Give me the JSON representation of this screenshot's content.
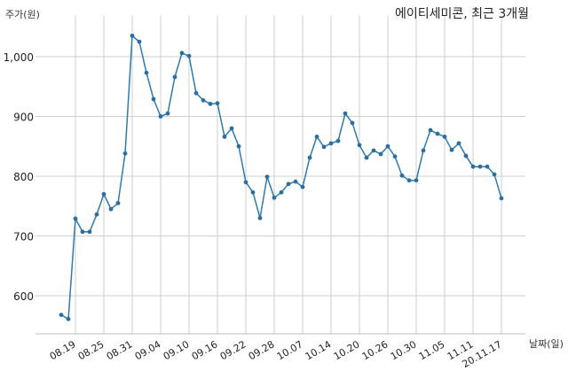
{
  "chart_data": {
    "type": "line",
    "title": "에이티세미콘, 최근 3개월",
    "xlabel": "날짜(일)",
    "ylabel": "주가(원)",
    "ylim": [
      540,
      1050
    ],
    "yticks": [
      600,
      700,
      800,
      900,
      1000
    ],
    "ytick_labels": [
      "600",
      "700",
      "800",
      "900",
      "1,000"
    ],
    "xtick_labels": [
      "08.19",
      "08.25",
      "08.31",
      "09.04",
      "09.10",
      "09.16",
      "09.22",
      "09.28",
      "10.07",
      "10.14",
      "10.20",
      "10.26",
      "10.30",
      "11.05",
      "11.11",
      "20.11.17"
    ],
    "grid": true,
    "line_color": "#2e7bb0",
    "series": [
      {
        "name": "주가",
        "values": [
          568,
          561,
          729,
          707,
          707,
          736,
          770,
          745,
          755,
          838,
          1035,
          1025,
          973,
          929,
          900,
          905,
          966,
          1006,
          1001,
          939,
          927,
          921,
          922,
          866,
          880,
          850,
          790,
          773,
          730,
          799,
          764,
          773,
          787,
          791,
          782,
          831,
          866,
          849,
          855,
          859,
          905,
          889,
          852,
          831,
          843,
          837,
          850,
          833,
          801,
          793,
          793,
          843,
          877,
          871,
          866,
          844,
          855,
          834,
          816,
          816,
          816,
          803,
          763
        ]
      }
    ]
  }
}
